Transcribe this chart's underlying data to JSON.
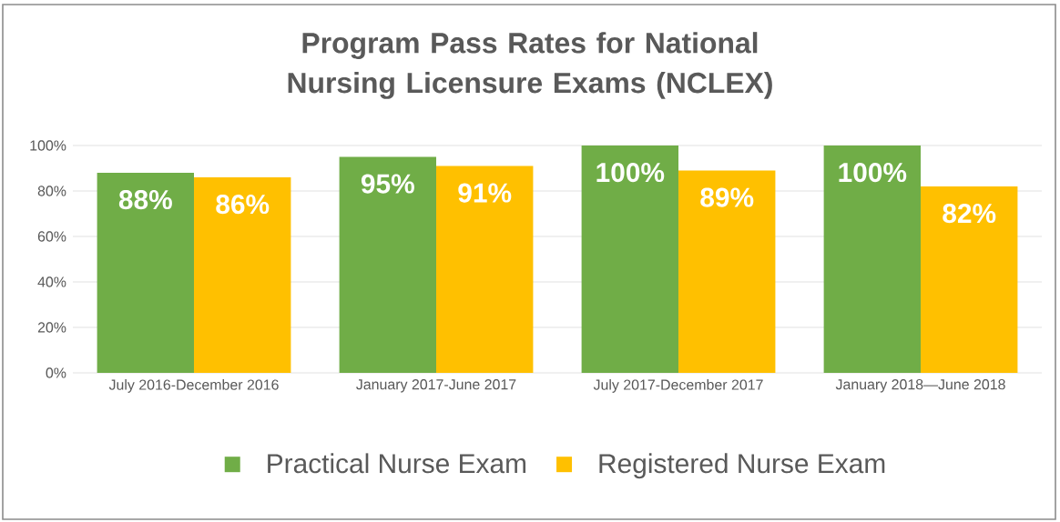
{
  "chart_data": {
    "type": "bar",
    "title": "Program Pass Rates for National Nursing Licensure Exams (NCLEX)",
    "categories": [
      "July 2016-December 2016",
      "January 2017-June 2017",
      "July 2017-December 2017",
      "January 2018—June 2018"
    ],
    "series": [
      {
        "name": "Practical Nurse Exam",
        "color": "#70ad47",
        "values": [
          88,
          95,
          100,
          100
        ],
        "value_labels": [
          "88%",
          "95%",
          "100%",
          "100%"
        ]
      },
      {
        "name": "Registered Nurse Exam",
        "color": "#ffc000",
        "values": [
          86,
          91,
          89,
          82
        ],
        "value_labels": [
          "86%",
          "91%",
          "89%",
          "82%"
        ]
      }
    ],
    "ylim": [
      0,
      100
    ],
    "yticks": [
      {
        "value": 0,
        "label": "0%"
      },
      {
        "value": 20,
        "label": "20%"
      },
      {
        "value": 40,
        "label": "40%"
      },
      {
        "value": 60,
        "label": "60%"
      },
      {
        "value": 80,
        "label": "80%"
      },
      {
        "value": 100,
        "label": "100%"
      }
    ],
    "grid": "y",
    "legend": "bottom"
  }
}
